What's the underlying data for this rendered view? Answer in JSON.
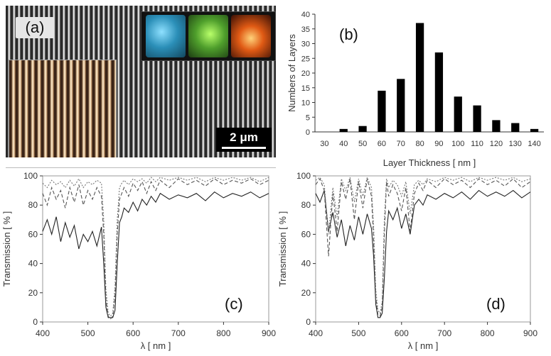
{
  "panel_a": {
    "label": "(a)",
    "scale_bar": "2 μm",
    "colors": {
      "sem_dark": "#2a2a2a",
      "sem_light": "#f2f2f2",
      "optical": "#e7c79c"
    },
    "swatch_colors": [
      "#2b8fb8",
      "#4f9f2c",
      "#e05a14"
    ]
  },
  "chart_data": [
    {
      "type": "bar",
      "label": "(b)",
      "categories": [
        "30",
        "40",
        "50",
        "60",
        "70",
        "80",
        "90",
        "100",
        "110",
        "120",
        "130",
        "140"
      ],
      "values": [
        0,
        1,
        2,
        14,
        18,
        37,
        27,
        12,
        9,
        4,
        3,
        1
      ],
      "xlabel": "Layer Thickness [ nm ]",
      "ylabel": "Numbers of Layers",
      "ylim": [
        0,
        40
      ],
      "yticks": [
        0,
        5,
        10,
        15,
        20,
        25,
        30,
        35,
        40
      ],
      "ytick_labels": [
        "0",
        "5",
        "10",
        "15",
        "20",
        "25",
        "30",
        "35",
        "40"
      ],
      "grid": false,
      "bar_color": "#000000"
    },
    {
      "type": "line",
      "label": "(c)",
      "xlabel": "λ [ nm ]",
      "ylabel": "Transmission [ % ]",
      "xlim": [
        400,
        900
      ],
      "ylim": [
        0,
        100
      ],
      "xticks": [
        "400",
        "500",
        "600",
        "700",
        "800",
        "900"
      ],
      "yticks": [
        "0",
        "20",
        "40",
        "60",
        "80",
        "100"
      ],
      "grid": false,
      "series": [
        {
          "style": "solid",
          "color": "#222222",
          "x": [
            400,
            410,
            420,
            430,
            440,
            450,
            460,
            470,
            480,
            490,
            500,
            510,
            520,
            530,
            535,
            540,
            545,
            550,
            555,
            560,
            565,
            570,
            575,
            580,
            590,
            600,
            610,
            620,
            630,
            640,
            650,
            660,
            680,
            700,
            720,
            740,
            760,
            780,
            800,
            820,
            840,
            860,
            880,
            900
          ],
          "y": [
            62,
            70,
            60,
            72,
            55,
            68,
            58,
            66,
            50,
            60,
            55,
            62,
            52,
            65,
            40,
            10,
            3,
            3,
            3,
            8,
            40,
            68,
            72,
            78,
            75,
            82,
            76,
            84,
            80,
            86,
            82,
            88,
            84,
            87,
            85,
            88,
            83,
            89,
            85,
            88,
            86,
            89,
            85,
            88
          ]
        },
        {
          "style": "dashed",
          "color": "#555555",
          "x": [
            400,
            410,
            420,
            430,
            440,
            450,
            460,
            470,
            480,
            490,
            500,
            510,
            520,
            530,
            535,
            540,
            545,
            550,
            555,
            560,
            565,
            570,
            575,
            580,
            590,
            600,
            610,
            620,
            630,
            640,
            650,
            660,
            680,
            700,
            720,
            740,
            760,
            780,
            800,
            820,
            840,
            860,
            880,
            900
          ],
          "y": [
            88,
            80,
            92,
            84,
            90,
            78,
            92,
            82,
            94,
            80,
            90,
            84,
            92,
            86,
            60,
            15,
            4,
            2,
            4,
            18,
            60,
            84,
            88,
            92,
            86,
            95,
            90,
            96,
            88,
            96,
            90,
            97,
            92,
            98,
            94,
            97,
            93,
            98,
            94,
            97,
            95,
            98,
            94,
            97
          ]
        },
        {
          "style": "dotted",
          "color": "#777777",
          "x": [
            400,
            410,
            420,
            430,
            440,
            450,
            460,
            470,
            480,
            490,
            500,
            510,
            520,
            530,
            535,
            540,
            545,
            550,
            555,
            560,
            565,
            570,
            575,
            580,
            590,
            600,
            610,
            620,
            630,
            640,
            650,
            660,
            680,
            700,
            720,
            740,
            760,
            780,
            800,
            820,
            840,
            860,
            880,
            900
          ],
          "y": [
            95,
            92,
            97,
            94,
            96,
            92,
            97,
            93,
            98,
            92,
            96,
            94,
            97,
            95,
            70,
            22,
            6,
            4,
            6,
            24,
            70,
            92,
            95,
            97,
            94,
            98,
            96,
            98,
            95,
            99,
            96,
            99,
            97,
            99,
            97,
            99,
            96,
            99,
            97,
            99,
            97,
            99,
            96,
            99
          ]
        }
      ]
    },
    {
      "type": "line",
      "label": "(d)",
      "xlabel": "λ [ nm ]",
      "ylabel": "Transmission [ % ]",
      "xlim": [
        400,
        900
      ],
      "ylim": [
        0,
        100
      ],
      "xticks": [
        "400",
        "500",
        "600",
        "700",
        "800",
        "900"
      ],
      "yticks": [
        "0",
        "20",
        "40",
        "60",
        "80",
        "100"
      ],
      "grid": false,
      "series": [
        {
          "style": "solid",
          "color": "#222222",
          "x": [
            400,
            410,
            420,
            430,
            440,
            450,
            460,
            470,
            480,
            490,
            500,
            510,
            520,
            530,
            535,
            540,
            545,
            550,
            555,
            560,
            565,
            570,
            580,
            590,
            600,
            610,
            620,
            630,
            640,
            650,
            660,
            680,
            700,
            720,
            740,
            760,
            780,
            800,
            820,
            840,
            860,
            880,
            900
          ],
          "y": [
            88,
            82,
            90,
            62,
            75,
            58,
            70,
            52,
            66,
            56,
            72,
            60,
            74,
            64,
            45,
            12,
            3,
            3,
            6,
            30,
            62,
            76,
            70,
            78,
            64,
            74,
            60,
            80,
            84,
            80,
            87,
            84,
            88,
            85,
            89,
            84,
            90,
            86,
            89,
            86,
            90,
            85,
            89
          ]
        },
        {
          "style": "dashed",
          "color": "#555555",
          "x": [
            400,
            410,
            420,
            430,
            440,
            450,
            460,
            470,
            480,
            490,
            500,
            510,
            520,
            530,
            535,
            540,
            545,
            550,
            555,
            560,
            565,
            570,
            580,
            590,
            600,
            610,
            620,
            630,
            640,
            650,
            660,
            680,
            700,
            720,
            740,
            760,
            780,
            800,
            820,
            840,
            860,
            880,
            900
          ],
          "y": [
            94,
            98,
            90,
            45,
            88,
            62,
            96,
            84,
            98,
            70,
            96,
            78,
            98,
            86,
            56,
            16,
            5,
            4,
            10,
            60,
            96,
            86,
            94,
            88,
            76,
            92,
            62,
            88,
            95,
            90,
            97,
            92,
            98,
            94,
            97,
            92,
            98,
            94,
            97,
            93,
            98,
            92,
            96
          ]
        },
        {
          "style": "dotted",
          "color": "#777777",
          "x": [
            400,
            410,
            420,
            430,
            440,
            450,
            460,
            470,
            480,
            490,
            500,
            510,
            520,
            530,
            535,
            540,
            545,
            550,
            555,
            560,
            565,
            570,
            580,
            590,
            600,
            610,
            620,
            630,
            640,
            650,
            660,
            680,
            700,
            720,
            740,
            760,
            780,
            800,
            820,
            840,
            860,
            880,
            900
          ],
          "y": [
            97,
            99,
            94,
            60,
            92,
            72,
            98,
            90,
            99,
            82,
            98,
            86,
            99,
            92,
            66,
            22,
            8,
            6,
            14,
            70,
            98,
            92,
            97,
            94,
            86,
            96,
            74,
            94,
            97,
            94,
            98,
            96,
            99,
            97,
            99,
            96,
            99,
            97,
            99,
            97,
            99,
            96,
            98
          ]
        }
      ]
    }
  ]
}
